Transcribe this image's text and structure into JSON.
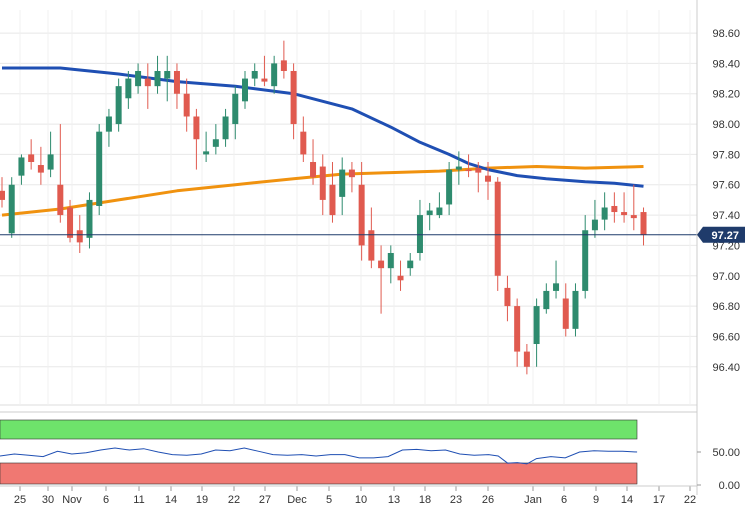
{
  "chart_data": [
    {
      "type": "candlestick",
      "title": "",
      "ylim": [
        96.2,
        98.7
      ],
      "yticks": [
        "98.60",
        "98.40",
        "98.20",
        "98.00",
        "97.80",
        "97.60",
        "97.40",
        "97.20",
        "97.00",
        "96.80",
        "96.60",
        "96.40"
      ],
      "xticks": [
        "25",
        "30",
        "Nov",
        "6",
        "11",
        "14",
        "19",
        "22",
        "27",
        "Dec",
        "5",
        "10",
        "13",
        "18",
        "23",
        "26",
        "Jan",
        "6",
        "9",
        "14",
        "17",
        "22"
      ],
      "current_price": "97.27",
      "colors": {
        "up": "#2e8b6e",
        "down": "#e05a4f",
        "ma_fast": "#1f4fb3",
        "ma_slow": "#f0920f",
        "price_line": "#1f3b6b"
      },
      "candles": [
        [
          97.56,
          97.65,
          97.45,
          97.5
        ],
        [
          97.28,
          97.65,
          97.25,
          97.6
        ],
        [
          97.66,
          97.8,
          97.6,
          97.78
        ],
        [
          97.8,
          97.9,
          97.7,
          97.75
        ],
        [
          97.73,
          97.85,
          97.6,
          97.68
        ],
        [
          97.7,
          97.95,
          97.65,
          97.8
        ],
        [
          97.6,
          98.0,
          97.35,
          97.4
        ],
        [
          97.45,
          97.5,
          97.22,
          97.25
        ],
        [
          97.3,
          97.4,
          97.15,
          97.22
        ],
        [
          97.25,
          97.55,
          97.18,
          97.5
        ],
        [
          97.46,
          98.0,
          97.4,
          97.95
        ],
        [
          97.95,
          98.1,
          97.85,
          98.05
        ],
        [
          98.0,
          98.3,
          97.95,
          98.25
        ],
        [
          98.17,
          98.35,
          98.1,
          98.3
        ],
        [
          98.25,
          98.4,
          98.2,
          98.35
        ],
        [
          98.3,
          98.4,
          98.1,
          98.25
        ],
        [
          98.25,
          98.45,
          98.2,
          98.35
        ],
        [
          98.3,
          98.45,
          98.15,
          98.35
        ],
        [
          98.35,
          98.4,
          98.1,
          98.2
        ],
        [
          98.2,
          98.3,
          97.95,
          98.05
        ],
        [
          98.05,
          98.1,
          97.7,
          97.9
        ],
        [
          97.8,
          97.95,
          97.75,
          97.82
        ],
        [
          97.85,
          98.0,
          97.8,
          97.9
        ],
        [
          97.9,
          98.1,
          97.85,
          98.05
        ],
        [
          98.0,
          98.25,
          97.9,
          98.2
        ],
        [
          98.15,
          98.35,
          98.1,
          98.3
        ],
        [
          98.3,
          98.4,
          98.25,
          98.35
        ],
        [
          98.3,
          98.45,
          98.25,
          98.28
        ],
        [
          98.25,
          98.45,
          98.2,
          98.4
        ],
        [
          98.42,
          98.55,
          98.3,
          98.35
        ],
        [
          98.35,
          98.4,
          97.9,
          98.0
        ],
        [
          97.95,
          98.05,
          97.75,
          97.8
        ],
        [
          97.75,
          97.9,
          97.6,
          97.65
        ],
        [
          97.72,
          97.8,
          97.4,
          97.5
        ],
        [
          97.6,
          97.75,
          97.35,
          97.4
        ],
        [
          97.52,
          97.78,
          97.4,
          97.7
        ],
        [
          97.7,
          97.75,
          97.55,
          97.65
        ],
        [
          97.6,
          97.75,
          97.1,
          97.2
        ],
        [
          97.3,
          97.45,
          97.05,
          97.1
        ],
        [
          97.1,
          97.2,
          96.75,
          97.05
        ],
        [
          97.05,
          97.2,
          96.95,
          97.15
        ],
        [
          97.0,
          97.1,
          96.9,
          96.97
        ],
        [
          97.05,
          97.15,
          97.0,
          97.1
        ],
        [
          97.15,
          97.5,
          97.1,
          97.4
        ],
        [
          97.4,
          97.48,
          97.3,
          97.43
        ],
        [
          97.4,
          97.55,
          97.38,
          97.45
        ],
        [
          97.47,
          97.75,
          97.4,
          97.7
        ],
        [
          97.7,
          97.82,
          97.6,
          97.72
        ],
        [
          97.7,
          97.8,
          97.65,
          97.69
        ],
        [
          97.71,
          97.75,
          97.55,
          97.68
        ],
        [
          97.66,
          97.75,
          97.5,
          97.62
        ],
        [
          97.62,
          97.65,
          96.9,
          97.0
        ],
        [
          96.92,
          97.0,
          96.7,
          96.8
        ],
        [
          96.8,
          96.85,
          96.4,
          96.5
        ],
        [
          96.5,
          96.55,
          96.35,
          96.4
        ],
        [
          96.55,
          96.85,
          96.4,
          96.8
        ],
        [
          96.78,
          96.95,
          96.75,
          96.9
        ],
        [
          96.9,
          97.1,
          96.85,
          96.95
        ],
        [
          96.85,
          96.95,
          96.6,
          96.65
        ],
        [
          96.65,
          96.95,
          96.6,
          96.9
        ],
        [
          96.9,
          97.4,
          96.85,
          97.3
        ],
        [
          97.3,
          97.5,
          97.25,
          97.37
        ],
        [
          97.37,
          97.55,
          97.3,
          97.45
        ],
        [
          97.46,
          97.55,
          97.35,
          97.42
        ],
        [
          97.42,
          97.55,
          97.35,
          97.4
        ],
        [
          97.4,
          97.6,
          97.3,
          97.38
        ],
        [
          97.42,
          97.45,
          97.2,
          97.27
        ]
      ],
      "ma_fast": [
        [
          0,
          98.37
        ],
        [
          6,
          98.37
        ],
        [
          12,
          98.33
        ],
        [
          18,
          98.28
        ],
        [
          24,
          98.25
        ],
        [
          30,
          98.2
        ],
        [
          36,
          98.1
        ],
        [
          40,
          97.98
        ],
        [
          43,
          97.88
        ],
        [
          46,
          97.8
        ],
        [
          48,
          97.74
        ],
        [
          50,
          97.7
        ],
        [
          53,
          97.66
        ],
        [
          56,
          97.64
        ],
        [
          60,
          97.62
        ],
        [
          63,
          97.61
        ],
        [
          66,
          97.59
        ]
      ],
      "ma_slow": [
        [
          0,
          97.4
        ],
        [
          6,
          97.44
        ],
        [
          12,
          97.5
        ],
        [
          18,
          97.56
        ],
        [
          24,
          97.6
        ],
        [
          30,
          97.64
        ],
        [
          35,
          97.67
        ],
        [
          40,
          97.68
        ],
        [
          45,
          97.69
        ],
        [
          50,
          97.71
        ],
        [
          55,
          97.72
        ],
        [
          60,
          97.71
        ],
        [
          66,
          97.72
        ]
      ]
    },
    {
      "type": "line",
      "title": "",
      "ylim": [
        0,
        80
      ],
      "yticks": [
        "50.00",
        "0.00"
      ],
      "overbought_level": 70,
      "oversold_level": 30,
      "overbought_color": "#6ee36b",
      "oversold_color": "#f07872",
      "line_color": "#1f4fb3",
      "values": [
        [
          0,
          44
        ],
        [
          3,
          47
        ],
        [
          6,
          45
        ],
        [
          9,
          43
        ],
        [
          12,
          51
        ],
        [
          15,
          47
        ],
        [
          18,
          49
        ],
        [
          21,
          53
        ],
        [
          24,
          56
        ],
        [
          27,
          53
        ],
        [
          30,
          55
        ],
        [
          33,
          50
        ],
        [
          36,
          46
        ],
        [
          39,
          45
        ],
        [
          42,
          47
        ],
        [
          45,
          53
        ],
        [
          48,
          52
        ],
        [
          51,
          56
        ],
        [
          54,
          51
        ],
        [
          57,
          46
        ],
        [
          60,
          45
        ],
        [
          63,
          46
        ],
        [
          66,
          44
        ],
        [
          69,
          46
        ],
        [
          72,
          46
        ],
        [
          75,
          41
        ],
        [
          78,
          41
        ],
        [
          81,
          43
        ],
        [
          84,
          53
        ],
        [
          87,
          54
        ],
        [
          90,
          52
        ],
        [
          93,
          53
        ],
        [
          96,
          47
        ],
        [
          99,
          45
        ],
        [
          102,
          46
        ],
        [
          104,
          44
        ],
        [
          106,
          33
        ],
        [
          108,
          34
        ],
        [
          110,
          32
        ],
        [
          112,
          40
        ],
        [
          115,
          43
        ],
        [
          118,
          41
        ],
        [
          121,
          50
        ],
        [
          124,
          52
        ],
        [
          127,
          51
        ],
        [
          130,
          51
        ],
        [
          133,
          50
        ]
      ]
    }
  ]
}
